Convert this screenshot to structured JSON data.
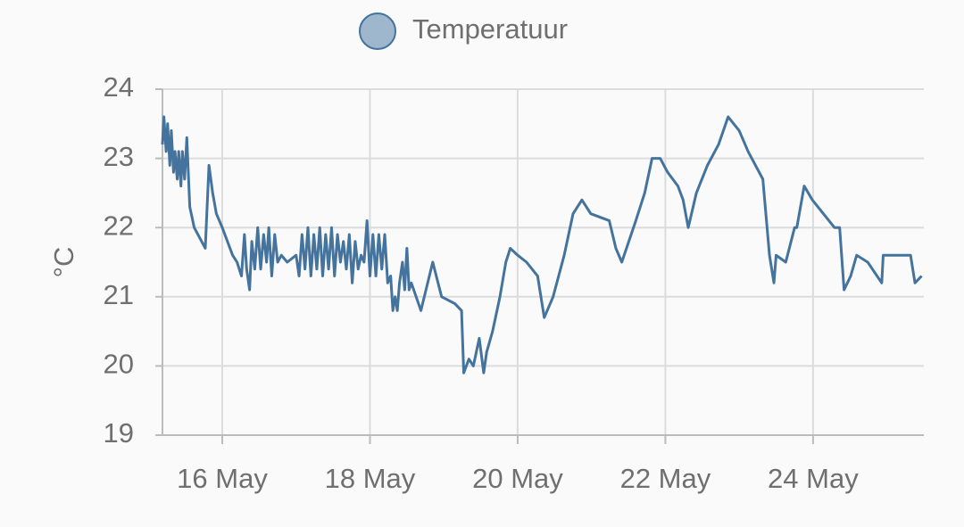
{
  "chart_data": {
    "type": "line",
    "legend": "top",
    "y_label": "°C",
    "xlim": [
      15.19,
      25.5
    ],
    "ylim": [
      19,
      24
    ],
    "xticks": [
      {
        "value": 16,
        "label": "16 May"
      },
      {
        "value": 18,
        "label": "18 May"
      },
      {
        "value": 20,
        "label": "20 May"
      },
      {
        "value": 22,
        "label": "22 May"
      },
      {
        "value": 24,
        "label": "24 May"
      }
    ],
    "yticks": [
      19,
      20,
      21,
      22,
      23,
      24
    ],
    "grid": true,
    "series": [
      {
        "name": "Temperatuur",
        "color": "#44739e",
        "x": [
          15.19,
          15.21,
          15.24,
          15.26,
          15.29,
          15.31,
          15.34,
          15.36,
          15.39,
          15.41,
          15.44,
          15.46,
          15.49,
          15.52,
          15.56,
          15.62,
          15.77,
          15.82,
          15.87,
          15.92,
          16.0,
          16.07,
          16.14,
          16.2,
          16.26,
          16.3,
          16.33,
          16.37,
          16.4,
          16.44,
          16.48,
          16.52,
          16.56,
          16.6,
          16.63,
          16.67,
          16.71,
          16.75,
          16.8,
          16.88,
          17.0,
          17.04,
          17.08,
          17.12,
          17.16,
          17.2,
          17.24,
          17.28,
          17.32,
          17.36,
          17.4,
          17.44,
          17.48,
          17.52,
          17.56,
          17.6,
          17.64,
          17.68,
          17.72,
          17.76,
          17.8,
          17.84,
          17.88,
          17.92,
          17.96,
          18.0,
          18.04,
          18.08,
          18.12,
          18.16,
          18.2,
          18.24,
          18.28,
          18.31,
          18.34,
          18.37,
          18.4,
          18.44,
          18.47,
          18.5,
          18.53,
          18.56,
          18.69,
          18.85,
          18.97,
          19.15,
          19.24,
          19.27,
          19.34,
          19.4,
          19.48,
          19.54,
          19.58,
          19.66,
          19.76,
          19.84,
          19.9,
          20.0,
          20.12,
          20.27,
          20.36,
          20.48,
          20.63,
          20.75,
          20.87,
          20.99,
          21.24,
          21.33,
          21.41,
          21.6,
          21.72,
          21.82,
          21.93,
          22.03,
          22.17,
          22.24,
          22.31,
          22.42,
          22.57,
          22.72,
          22.85,
          23.0,
          23.12,
          23.32,
          23.41,
          23.47,
          23.5,
          23.63,
          23.75,
          23.78,
          23.88,
          23.99,
          24.14,
          24.29,
          24.36,
          24.42,
          24.51,
          24.59,
          24.74,
          24.93,
          24.95,
          25.32,
          25.38,
          25.47
        ],
        "values": [
          23.2,
          23.6,
          23.1,
          23.5,
          22.9,
          23.4,
          22.8,
          23.1,
          22.7,
          23.1,
          22.6,
          23.1,
          22.7,
          23.3,
          22.3,
          22.0,
          21.7,
          22.9,
          22.5,
          22.2,
          22.0,
          21.8,
          21.6,
          21.5,
          21.3,
          21.9,
          21.4,
          21.1,
          21.8,
          21.4,
          22.0,
          21.4,
          21.9,
          21.5,
          22.0,
          21.3,
          21.9,
          21.5,
          21.6,
          21.5,
          21.6,
          21.3,
          21.9,
          21.4,
          22.0,
          21.3,
          21.9,
          21.4,
          22.0,
          21.3,
          21.9,
          21.4,
          22.0,
          21.3,
          21.9,
          21.5,
          21.8,
          21.4,
          21.9,
          21.2,
          21.8,
          21.4,
          21.6,
          21.5,
          22.1,
          21.3,
          21.9,
          21.3,
          21.9,
          21.4,
          21.9,
          21.2,
          21.3,
          20.8,
          21.0,
          20.8,
          21.2,
          21.5,
          21.1,
          21.7,
          21.1,
          21.2,
          20.8,
          21.5,
          21.0,
          20.9,
          20.8,
          19.9,
          20.1,
          20.0,
          20.4,
          19.9,
          20.2,
          20.5,
          21.0,
          21.5,
          21.7,
          21.6,
          21.5,
          21.3,
          20.7,
          21.0,
          21.6,
          22.2,
          22.4,
          22.2,
          22.1,
          21.7,
          21.5,
          22.1,
          22.5,
          23.0,
          23.0,
          22.8,
          22.6,
          22.4,
          22.0,
          22.5,
          22.9,
          23.2,
          23.6,
          23.4,
          23.1,
          22.7,
          21.6,
          21.2,
          21.6,
          21.5,
          22.0,
          22.0,
          22.6,
          22.4,
          22.2,
          22.0,
          22.0,
          21.1,
          21.3,
          21.6,
          21.5,
          21.2,
          21.6,
          21.6,
          21.2,
          21.3
        ]
      }
    ]
  }
}
